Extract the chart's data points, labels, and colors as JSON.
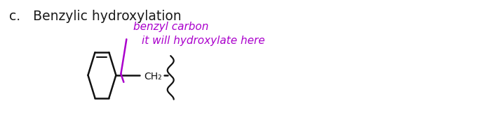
{
  "title_text": "c.   Benzylic hydroxylation",
  "title_fontsize": 13.5,
  "title_color": "#1a1a1a",
  "bg_color": "#ffffff",
  "line_color": "#111111",
  "purple_color": "#aa00cc",
  "annotation_benzyl": "benzyl carbon",
  "annotation_hydroxylate": "it will hydroxylate here",
  "annot_fontsize": 10.5,
  "ch2_label": "CH₂",
  "ch2_fontsize": 10
}
